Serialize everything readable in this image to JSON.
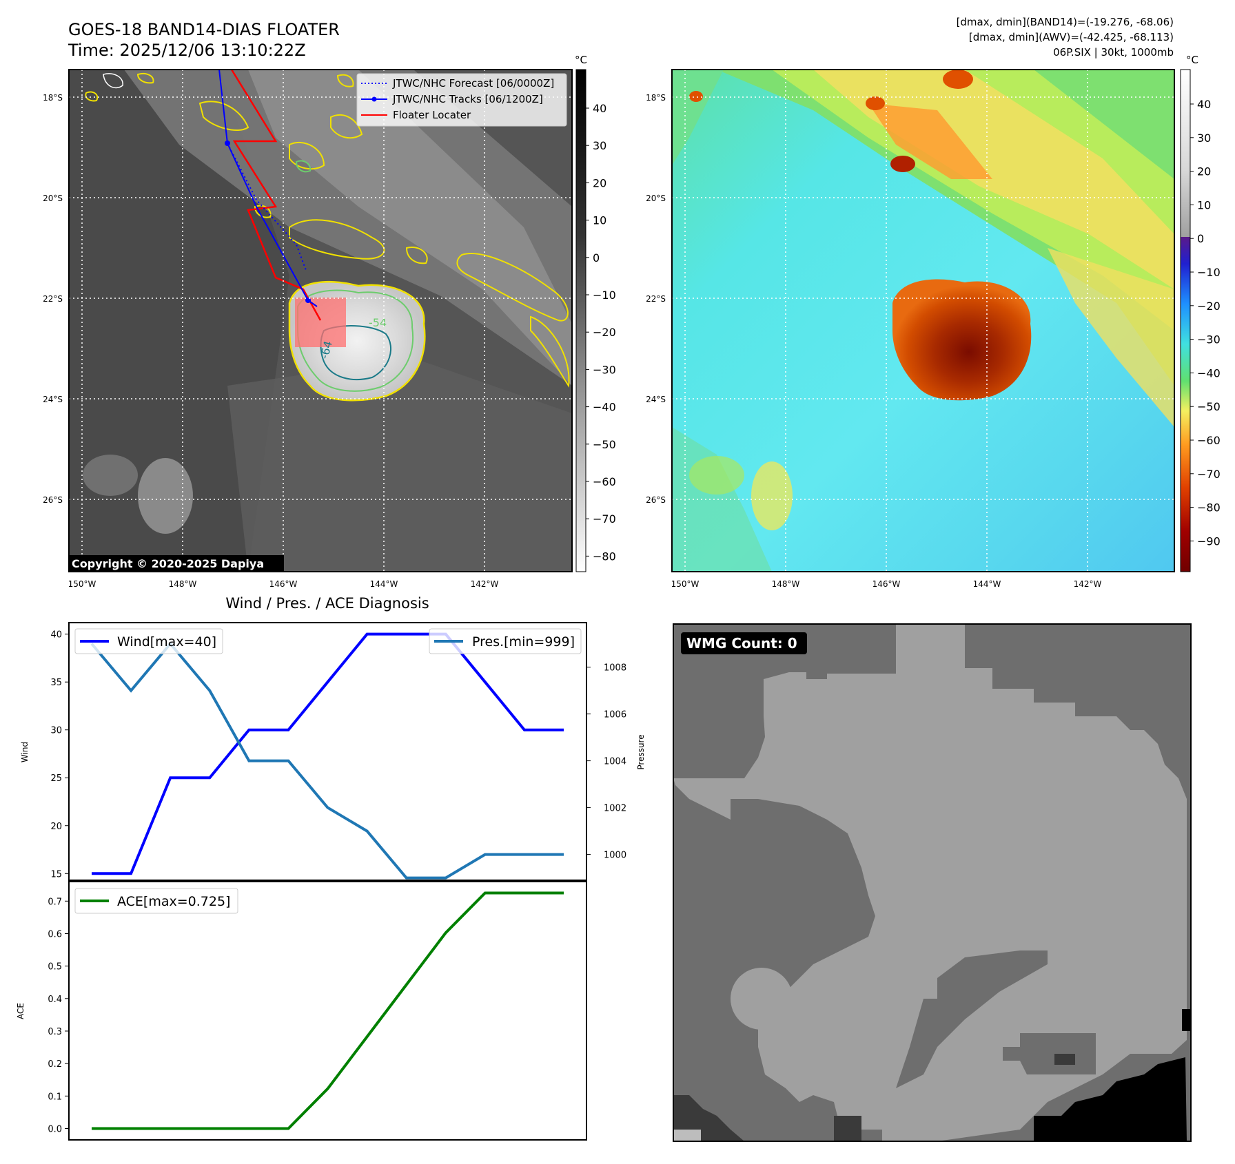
{
  "header": {
    "title_line1": "GOES-18 BAND14-DIAS FLOATER",
    "title_line2": "Time: 2025/12/06 13:10:22Z",
    "stats_line1": "[dmax, dmin](BAND14)=(-19.276, -68.06)",
    "stats_line2": "[dmax, dmin](AWV)=(-42.425, -68.113)",
    "stats_line3": "06P.SIX | 30kt, 1000mb"
  },
  "maps": {
    "lat_labels": [
      "18°S",
      "20°S",
      "22°S",
      "24°S",
      "26°S"
    ],
    "lon_labels": [
      "150°W",
      "148°W",
      "146°W",
      "144°W",
      "142°W"
    ],
    "contour_labels": [
      "-54",
      "-64"
    ],
    "legend": [
      {
        "label": "JTWC/NHC Forecast [06/0000Z]",
        "color": "#0000ff",
        "style": "dotted"
      },
      {
        "label": "JTWC/NHC Tracks [06/1200Z]",
        "color": "#0000ff",
        "style": "solid-marker"
      },
      {
        "label": "Floater Locater",
        "color": "#ff0000",
        "style": "solid"
      }
    ],
    "copyright": "Copyright © 2020-2025 Dapiya",
    "colorbar_unit": "°C",
    "gray_colorbar_ticks": [
      "40",
      "30",
      "20",
      "10",
      "0",
      "−10",
      "−20",
      "−30",
      "−40",
      "−50",
      "−60",
      "−70",
      "−80"
    ],
    "color_colorbar_ticks": [
      "40",
      "30",
      "20",
      "10",
      "0",
      "−10",
      "−20",
      "−30",
      "−40",
      "−50",
      "−60",
      "−70",
      "−80",
      "−90"
    ]
  },
  "chart_data": [
    {
      "type": "line",
      "title": "Wind / Pres. / ACE Diagnosis",
      "x": [
        0,
        1,
        2,
        3,
        4,
        5,
        6,
        7,
        8,
        9,
        10,
        11,
        12
      ],
      "series": [
        {
          "name": "Wind[max=40]",
          "axis": "left",
          "color": "#0000ff",
          "values": [
            15,
            15,
            25,
            25,
            30,
            30,
            35,
            40,
            40,
            40,
            35,
            30,
            30
          ]
        },
        {
          "name": "Pres.[min=999]",
          "axis": "right",
          "color": "#1f77b4",
          "values": [
            1009,
            1007,
            1009,
            1007,
            1004,
            1004,
            1002,
            1001,
            999,
            999,
            1000,
            1000,
            1000
          ]
        }
      ],
      "ylabel": "Wind",
      "ylabel_right": "Pressure",
      "ylim": [
        14.3,
        41.2
      ],
      "ylim_right": [
        998.9,
        1009.9
      ],
      "yticks": [
        "15",
        "20",
        "25",
        "30",
        "35",
        "40"
      ],
      "yticks_right": [
        "1000",
        "1002",
        "1004",
        "1006",
        "1008"
      ],
      "legend": [
        "top-left",
        "top-right"
      ]
    },
    {
      "type": "line",
      "x": [
        0,
        1,
        2,
        3,
        4,
        5,
        6,
        7,
        8,
        9,
        10,
        11,
        12
      ],
      "series": [
        {
          "name": "ACE[max=0.725]",
          "color": "#008000",
          "values": [
            0,
            0,
            0,
            0,
            0,
            0,
            0.1225,
            0.2825,
            0.4425,
            0.6025,
            0.725,
            0.725,
            0.725
          ]
        }
      ],
      "ylabel": "ACE",
      "ylim": [
        -0.035,
        0.76
      ],
      "yticks": [
        "0.0",
        "0.1",
        "0.2",
        "0.3",
        "0.4",
        "0.5",
        "0.6",
        "0.7"
      ],
      "legend": "top-left"
    }
  ],
  "wmg": {
    "label": "WMG Count: 0"
  }
}
